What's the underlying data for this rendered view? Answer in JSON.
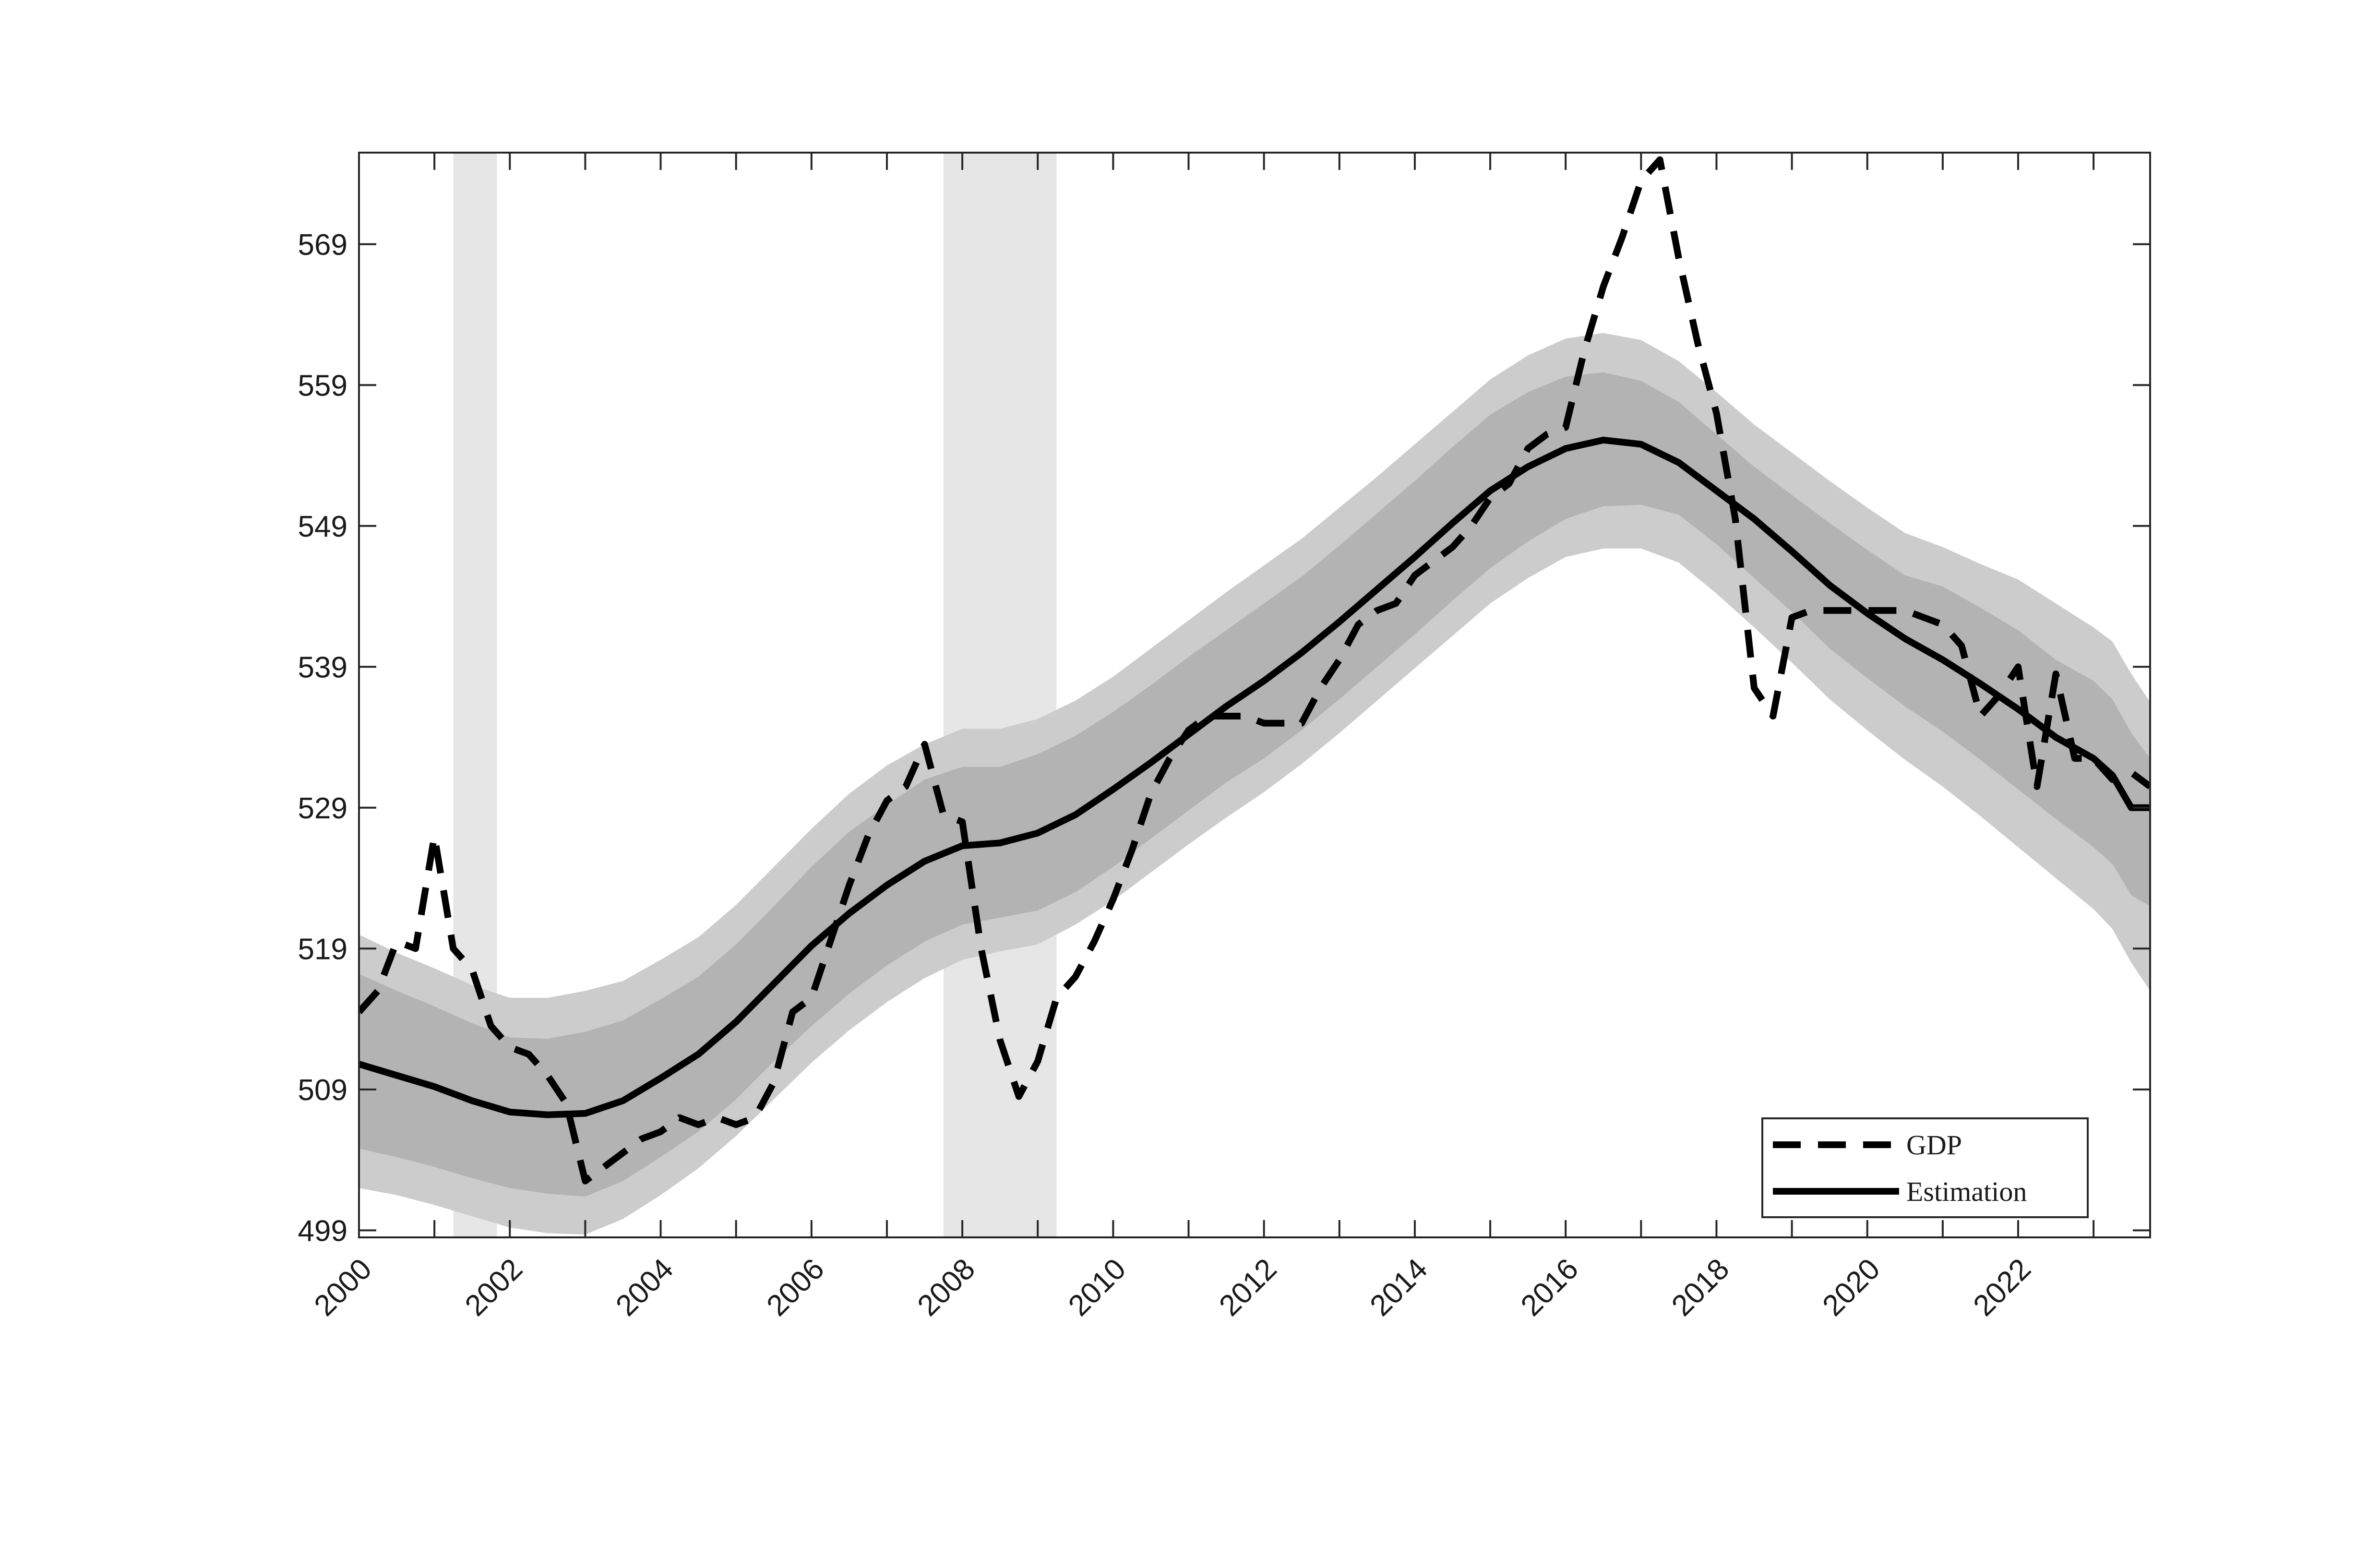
{
  "chart_data": {
    "type": "line",
    "title": "",
    "xlabel": "",
    "ylabel": "",
    "xlim": [
      2000.0,
      2023.75
    ],
    "ylim": [
      498.5,
      575.5
    ],
    "xticks": [
      2000,
      2002,
      2004,
      2006,
      2008,
      2010,
      2012,
      2014,
      2016,
      2018,
      2020,
      2022
    ],
    "xtick_labels": [
      "2000",
      "2002",
      "2004",
      "2006",
      "2008",
      "2010",
      "2012",
      "2014",
      "2016",
      "2018",
      "2020",
      "2022"
    ],
    "yticks": [
      499,
      509,
      519,
      529,
      539,
      549,
      559,
      569
    ],
    "ytick_labels": [
      "499",
      "509",
      "519",
      "529",
      "539",
      "549",
      "559",
      "569"
    ],
    "grid": false,
    "legend_position": "bottom-right",
    "recession_shading": [
      {
        "start": 2001.25,
        "end": 2001.83
      },
      {
        "start": 2007.75,
        "end": 2009.25
      }
    ],
    "series": [
      {
        "name": "GDP",
        "style": "dashed",
        "color": "#000000",
        "x": [
          2000.0,
          2000.25,
          2000.5,
          2000.75,
          2001.0,
          2001.25,
          2001.5,
          2001.75,
          2002.0,
          2002.25,
          2002.5,
          2002.75,
          2003.0,
          2003.25,
          2003.5,
          2003.75,
          2004.0,
          2004.25,
          2004.5,
          2004.75,
          2005.0,
          2005.25,
          2005.5,
          2005.75,
          2006.0,
          2006.25,
          2006.5,
          2006.75,
          2007.0,
          2007.25,
          2007.5,
          2007.75,
          2008.0,
          2008.25,
          2008.5,
          2008.75,
          2009.0,
          2009.25,
          2009.5,
          2009.75,
          2010.0,
          2010.25,
          2010.5,
          2010.75,
          2011.0,
          2011.25,
          2011.5,
          2011.75,
          2012.0,
          2012.25,
          2012.5,
          2012.75,
          2013.0,
          2013.25,
          2013.5,
          2013.75,
          2014.0,
          2014.25,
          2014.5,
          2014.75,
          2015.0,
          2015.25,
          2015.5,
          2015.75,
          2016.0,
          2016.25,
          2016.5,
          2016.75,
          2017.0,
          2017.25,
          2017.5,
          2017.75,
          2018.0,
          2018.25,
          2018.5,
          2018.75,
          2019.0,
          2019.25,
          2019.5,
          2019.75,
          2020.0,
          2020.25,
          2020.5,
          2020.75,
          2021.0,
          2021.25,
          2021.5,
          2021.75,
          2022.0,
          2022.25,
          2022.5,
          2022.75,
          2023.0,
          2023.25,
          2023.5,
          2023.75
        ],
        "values": [
          514.5,
          516.0,
          519.5,
          519.0,
          527.0,
          519.0,
          517.5,
          513.5,
          512.0,
          511.5,
          510.0,
          508.0,
          502.5,
          503.5,
          504.5,
          505.5,
          506.0,
          507.0,
          506.5,
          507.0,
          506.5,
          507.0,
          509.5,
          514.5,
          515.5,
          519.5,
          523.5,
          527.0,
          529.5,
          530.5,
          533.5,
          528.5,
          528.0,
          519.0,
          512.5,
          508.5,
          511.0,
          515.5,
          517.0,
          519.5,
          522.5,
          526.0,
          530.0,
          532.5,
          534.5,
          535.5,
          535.5,
          535.5,
          535.0,
          535.0,
          535.0,
          537.5,
          539.5,
          542.0,
          543.0,
          543.5,
          545.5,
          546.5,
          547.5,
          549.0,
          551.0,
          552.0,
          554.5,
          555.5,
          556.0,
          561.5,
          566.0,
          569.5,
          573.5,
          575.0,
          568.0,
          562.0,
          557.0,
          549.5,
          537.5,
          535.5,
          542.5,
          543.0,
          543.0,
          543.0,
          543.0,
          543.0,
          543.0,
          542.5,
          542.0,
          540.5,
          535.5,
          537.0,
          539.0,
          530.5,
          538.5,
          532.5,
          532.5,
          531.0,
          531.5,
          530.5
        ]
      },
      {
        "name": "Estimation",
        "style": "solid",
        "color": "#000000",
        "x": [
          2000.0,
          2000.5,
          2001.0,
          2001.5,
          2002.0,
          2002.5,
          2003.0,
          2003.5,
          2004.0,
          2004.5,
          2005.0,
          2005.5,
          2006.0,
          2006.5,
          2007.0,
          2007.5,
          2008.0,
          2008.5,
          2009.0,
          2009.5,
          2010.0,
          2010.5,
          2011.0,
          2011.5,
          2012.0,
          2012.5,
          2013.0,
          2013.5,
          2014.0,
          2014.5,
          2015.0,
          2015.5,
          2016.0,
          2016.5,
          2017.0,
          2017.5,
          2018.0,
          2018.5,
          2019.0,
          2019.5,
          2020.0,
          2020.5,
          2021.0,
          2021.5,
          2022.0,
          2022.5,
          2023.0,
          2023.25,
          2023.5,
          2023.75
        ],
        "values": [
          510.8,
          510.0,
          509.2,
          508.2,
          507.4,
          507.2,
          507.3,
          508.2,
          509.8,
          511.5,
          513.8,
          516.5,
          519.2,
          521.5,
          523.5,
          525.2,
          526.3,
          526.5,
          527.2,
          528.5,
          530.3,
          532.2,
          534.2,
          536.2,
          538.0,
          540.0,
          542.2,
          544.5,
          546.8,
          549.2,
          551.5,
          553.2,
          554.5,
          555.1,
          554.8,
          553.5,
          551.5,
          549.5,
          547.2,
          544.8,
          542.8,
          541.0,
          539.5,
          537.8,
          536.0,
          534.0,
          532.5,
          531.3,
          529.0,
          529.0
        ]
      }
    ],
    "bands": {
      "x": [
        2000.0,
        2000.5,
        2001.0,
        2001.5,
        2002.0,
        2002.5,
        2003.0,
        2003.5,
        2004.0,
        2004.5,
        2005.0,
        2005.5,
        2006.0,
        2006.5,
        2007.0,
        2007.5,
        2008.0,
        2008.5,
        2009.0,
        2009.5,
        2010.0,
        2010.5,
        2011.0,
        2011.5,
        2012.0,
        2012.5,
        2013.0,
        2013.5,
        2014.0,
        2014.5,
        2015.0,
        2015.5,
        2016.0,
        2016.5,
        2017.0,
        2017.5,
        2018.0,
        2018.5,
        2019.0,
        2019.5,
        2020.0,
        2020.5,
        2021.0,
        2021.5,
        2022.0,
        2022.5,
        2023.0,
        2023.25,
        2023.5,
        2023.75
      ],
      "inner_lower": [
        504.8,
        504.2,
        503.5,
        502.7,
        502.0,
        501.6,
        501.4,
        502.5,
        504.2,
        506.0,
        508.3,
        511.0,
        513.5,
        515.8,
        517.8,
        519.5,
        520.7,
        521.2,
        521.7,
        523.0,
        524.8,
        526.8,
        528.8,
        530.8,
        532.5,
        534.5,
        536.7,
        539.0,
        541.3,
        543.7,
        546.0,
        547.9,
        549.5,
        550.4,
        550.5,
        549.8,
        547.7,
        545.3,
        542.9,
        540.3,
        538.2,
        536.2,
        534.4,
        532.4,
        530.3,
        528.2,
        526.2,
        525.0,
        522.8,
        522.0
      ],
      "inner_upper": [
        517.2,
        516.0,
        514.9,
        513.7,
        512.7,
        512.6,
        513.1,
        513.9,
        515.4,
        517.0,
        519.3,
        522.0,
        524.8,
        527.3,
        529.2,
        531.0,
        531.9,
        531.9,
        532.8,
        534.1,
        535.8,
        537.7,
        539.7,
        541.6,
        543.5,
        545.4,
        547.6,
        549.9,
        552.2,
        554.6,
        556.9,
        558.5,
        559.6,
        559.9,
        559.3,
        557.8,
        555.5,
        553.2,
        551.2,
        549.2,
        547.3,
        545.5,
        544.7,
        543.2,
        541.6,
        539.5,
        538.0,
        536.7,
        534.3,
        532.5
      ],
      "outer_lower": [
        502.0,
        501.5,
        500.8,
        500.0,
        499.2,
        498.8,
        498.7,
        499.8,
        501.5,
        503.4,
        505.7,
        508.3,
        510.9,
        513.2,
        515.2,
        516.9,
        518.2,
        518.8,
        519.3,
        520.7,
        522.4,
        524.4,
        526.4,
        528.3,
        530.1,
        532.1,
        534.3,
        536.6,
        538.9,
        541.2,
        543.5,
        545.3,
        546.8,
        547.4,
        547.4,
        546.4,
        544.2,
        541.8,
        539.3,
        536.7,
        534.5,
        532.4,
        530.5,
        528.4,
        526.2,
        524.0,
        521.8,
        520.4,
        518.0,
        516.0
      ],
      "outer_upper": [
        520.0,
        518.7,
        517.6,
        516.4,
        515.5,
        515.5,
        516.0,
        516.7,
        518.2,
        519.8,
        522.1,
        524.8,
        527.5,
        530.0,
        532.0,
        533.5,
        534.6,
        534.6,
        535.3,
        536.6,
        538.3,
        540.3,
        542.3,
        544.3,
        546.2,
        548.1,
        550.3,
        552.5,
        554.8,
        557.1,
        559.4,
        561.1,
        562.3,
        562.7,
        562.2,
        560.7,
        558.5,
        556.2,
        554.2,
        552.2,
        550.3,
        548.5,
        547.5,
        546.3,
        545.2,
        543.5,
        541.8,
        540.8,
        538.5,
        536.5
      ]
    }
  },
  "legend": {
    "entries": [
      "GDP",
      "Estimation"
    ]
  },
  "colors": {
    "outer_band": "#cccccc",
    "inner_band": "#b3b3b3",
    "recession": "#e6e6e6",
    "line": "#000000",
    "axis": "#262626"
  }
}
